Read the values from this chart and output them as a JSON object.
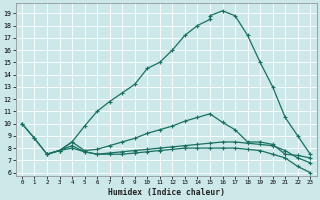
{
  "xlabel": "Humidex (Indice chaleur)",
  "background_color": "#cce8e8",
  "grid_color": "#ffffff",
  "line_color": "#1a7060",
  "xlim": [
    -0.5,
    23.5
  ],
  "ylim": [
    5.7,
    19.8
  ],
  "yticks": [
    6,
    7,
    8,
    9,
    10,
    11,
    12,
    13,
    14,
    15,
    16,
    17,
    18,
    19
  ],
  "xticks": [
    0,
    1,
    2,
    3,
    4,
    5,
    6,
    7,
    8,
    9,
    10,
    11,
    12,
    13,
    14,
    15,
    16,
    17,
    18,
    19,
    20,
    21,
    22,
    23
  ],
  "line_main_x": [
    2,
    3,
    4,
    5,
    6,
    7,
    8,
    9,
    10,
    11,
    12,
    13,
    14,
    15,
    15,
    16,
    17,
    18,
    19,
    20,
    21,
    22,
    23
  ],
  "line_main_y": [
    7.5,
    7.8,
    8.5,
    9.8,
    11.0,
    11.8,
    12.5,
    13.2,
    14.5,
    15.0,
    16.0,
    17.2,
    18.0,
    18.5,
    18.8,
    19.2,
    18.8,
    17.2,
    15.0,
    13.0,
    10.5,
    9.0,
    7.5
  ],
  "line_a_x": [
    0,
    1,
    2,
    3,
    4,
    5,
    6,
    7,
    8,
    9,
    10,
    11,
    12,
    13,
    14,
    15,
    16,
    17,
    18,
    19,
    20,
    21,
    22,
    23
  ],
  "line_a_y": [
    10.0,
    8.8,
    7.5,
    7.8,
    8.5,
    7.8,
    7.9,
    8.2,
    8.5,
    8.8,
    9.2,
    9.5,
    9.8,
    10.2,
    10.5,
    10.8,
    10.1,
    9.5,
    8.5,
    8.5,
    8.3,
    7.5,
    7.4,
    7.2
  ],
  "line_b_x": [
    0,
    1,
    2,
    3,
    4,
    5,
    6,
    7,
    8,
    9,
    10,
    11,
    12,
    13,
    14,
    15,
    16,
    17,
    18,
    19,
    20,
    21,
    22,
    23
  ],
  "line_b_y": [
    10.0,
    8.8,
    7.5,
    7.8,
    8.2,
    7.7,
    7.5,
    7.6,
    7.7,
    7.8,
    7.9,
    8.0,
    8.1,
    8.2,
    8.3,
    8.4,
    8.5,
    8.5,
    8.4,
    8.3,
    8.2,
    7.8,
    7.2,
    6.8
  ],
  "line_c_x": [
    2,
    3,
    4,
    5,
    6,
    7,
    8,
    9,
    10,
    11,
    12,
    13,
    14,
    15,
    16,
    17,
    18,
    19,
    20,
    21,
    22,
    23
  ],
  "line_c_y": [
    7.5,
    7.8,
    8.0,
    7.7,
    7.5,
    7.5,
    7.5,
    7.6,
    7.7,
    7.8,
    7.9,
    8.0,
    8.0,
    8.0,
    8.0,
    8.0,
    7.9,
    7.8,
    7.5,
    7.2,
    6.5,
    6.0
  ]
}
